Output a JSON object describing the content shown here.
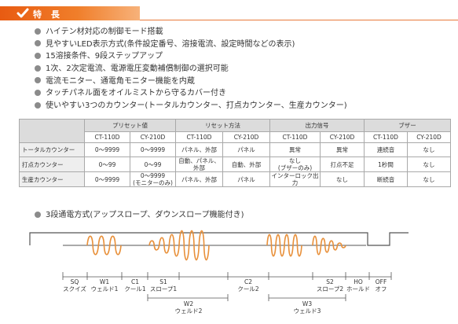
{
  "header": {
    "title": "特 長"
  },
  "features": [
    "ハイテン材対応の制御モード搭載",
    "見やすいLED表示方式(条件設定番号、溶接電流、設定時間などの表示)",
    "15溶接条件、9段ステップアップ",
    "1次、2次定電流、電源電圧変動補償制御の選択可能",
    "電流モニター、通電角モニター機能を内蔵",
    "タッチパネル面をオイルミストから守るカバー付き",
    "使いやすい3つのカウンター(トータルカウンター、打点カウンター、生産カウンター)"
  ],
  "table": {
    "groups": [
      "プリセット値",
      "リセット方法",
      "出力信号",
      "ブザー"
    ],
    "models": [
      "CT-110D",
      "CY-210D",
      "CT-110D",
      "CY-210D",
      "CT-110D",
      "CY-210D",
      "CT-110D",
      "CY-210D"
    ],
    "rows": [
      {
        "name": "トータルカウンター",
        "cells": [
          "0〜9999",
          "0〜9999",
          "パネル、外部",
          "パネル",
          "異常",
          "異常",
          "連続音",
          "なし"
        ]
      },
      {
        "name": "打点カウンター",
        "cells": [
          "0〜99",
          "0〜99",
          "自動、パネル、外部",
          "自動、外部",
          "なし\n(ブザーのみ)",
          "打点不足",
          "1秒間",
          "なし"
        ]
      },
      {
        "name": "生産カウンター",
        "cells": [
          "0〜9999",
          "0〜9999\n(モニターのみ)",
          "パネル、外部",
          "パネル",
          "インターロック出力",
          "なし",
          "断続音",
          "なし"
        ]
      }
    ]
  },
  "subheading": "3段通電方式(アップスロープ、ダウンスロープ機能付き)",
  "timing": {
    "segments": [
      {
        "code": "SQ",
        "name": "スクイズ"
      },
      {
        "code": "W1",
        "name": "ウェルド1"
      },
      {
        "code": "C1",
        "name": "クール1"
      },
      {
        "code": "S1",
        "name": "スロープ1"
      },
      {
        "code": "C2",
        "name": "クール2"
      },
      {
        "code": "S2",
        "name": "スロープ2"
      },
      {
        "code": "HO",
        "name": "ホールド"
      },
      {
        "code": "OFF",
        "name": "オフ"
      },
      {
        "code": "W2",
        "name": "ウェルド2"
      },
      {
        "code": "W3",
        "name": "ウェルド3"
      }
    ],
    "colors": {
      "wave": "#e8903a",
      "line": "#555555"
    }
  }
}
